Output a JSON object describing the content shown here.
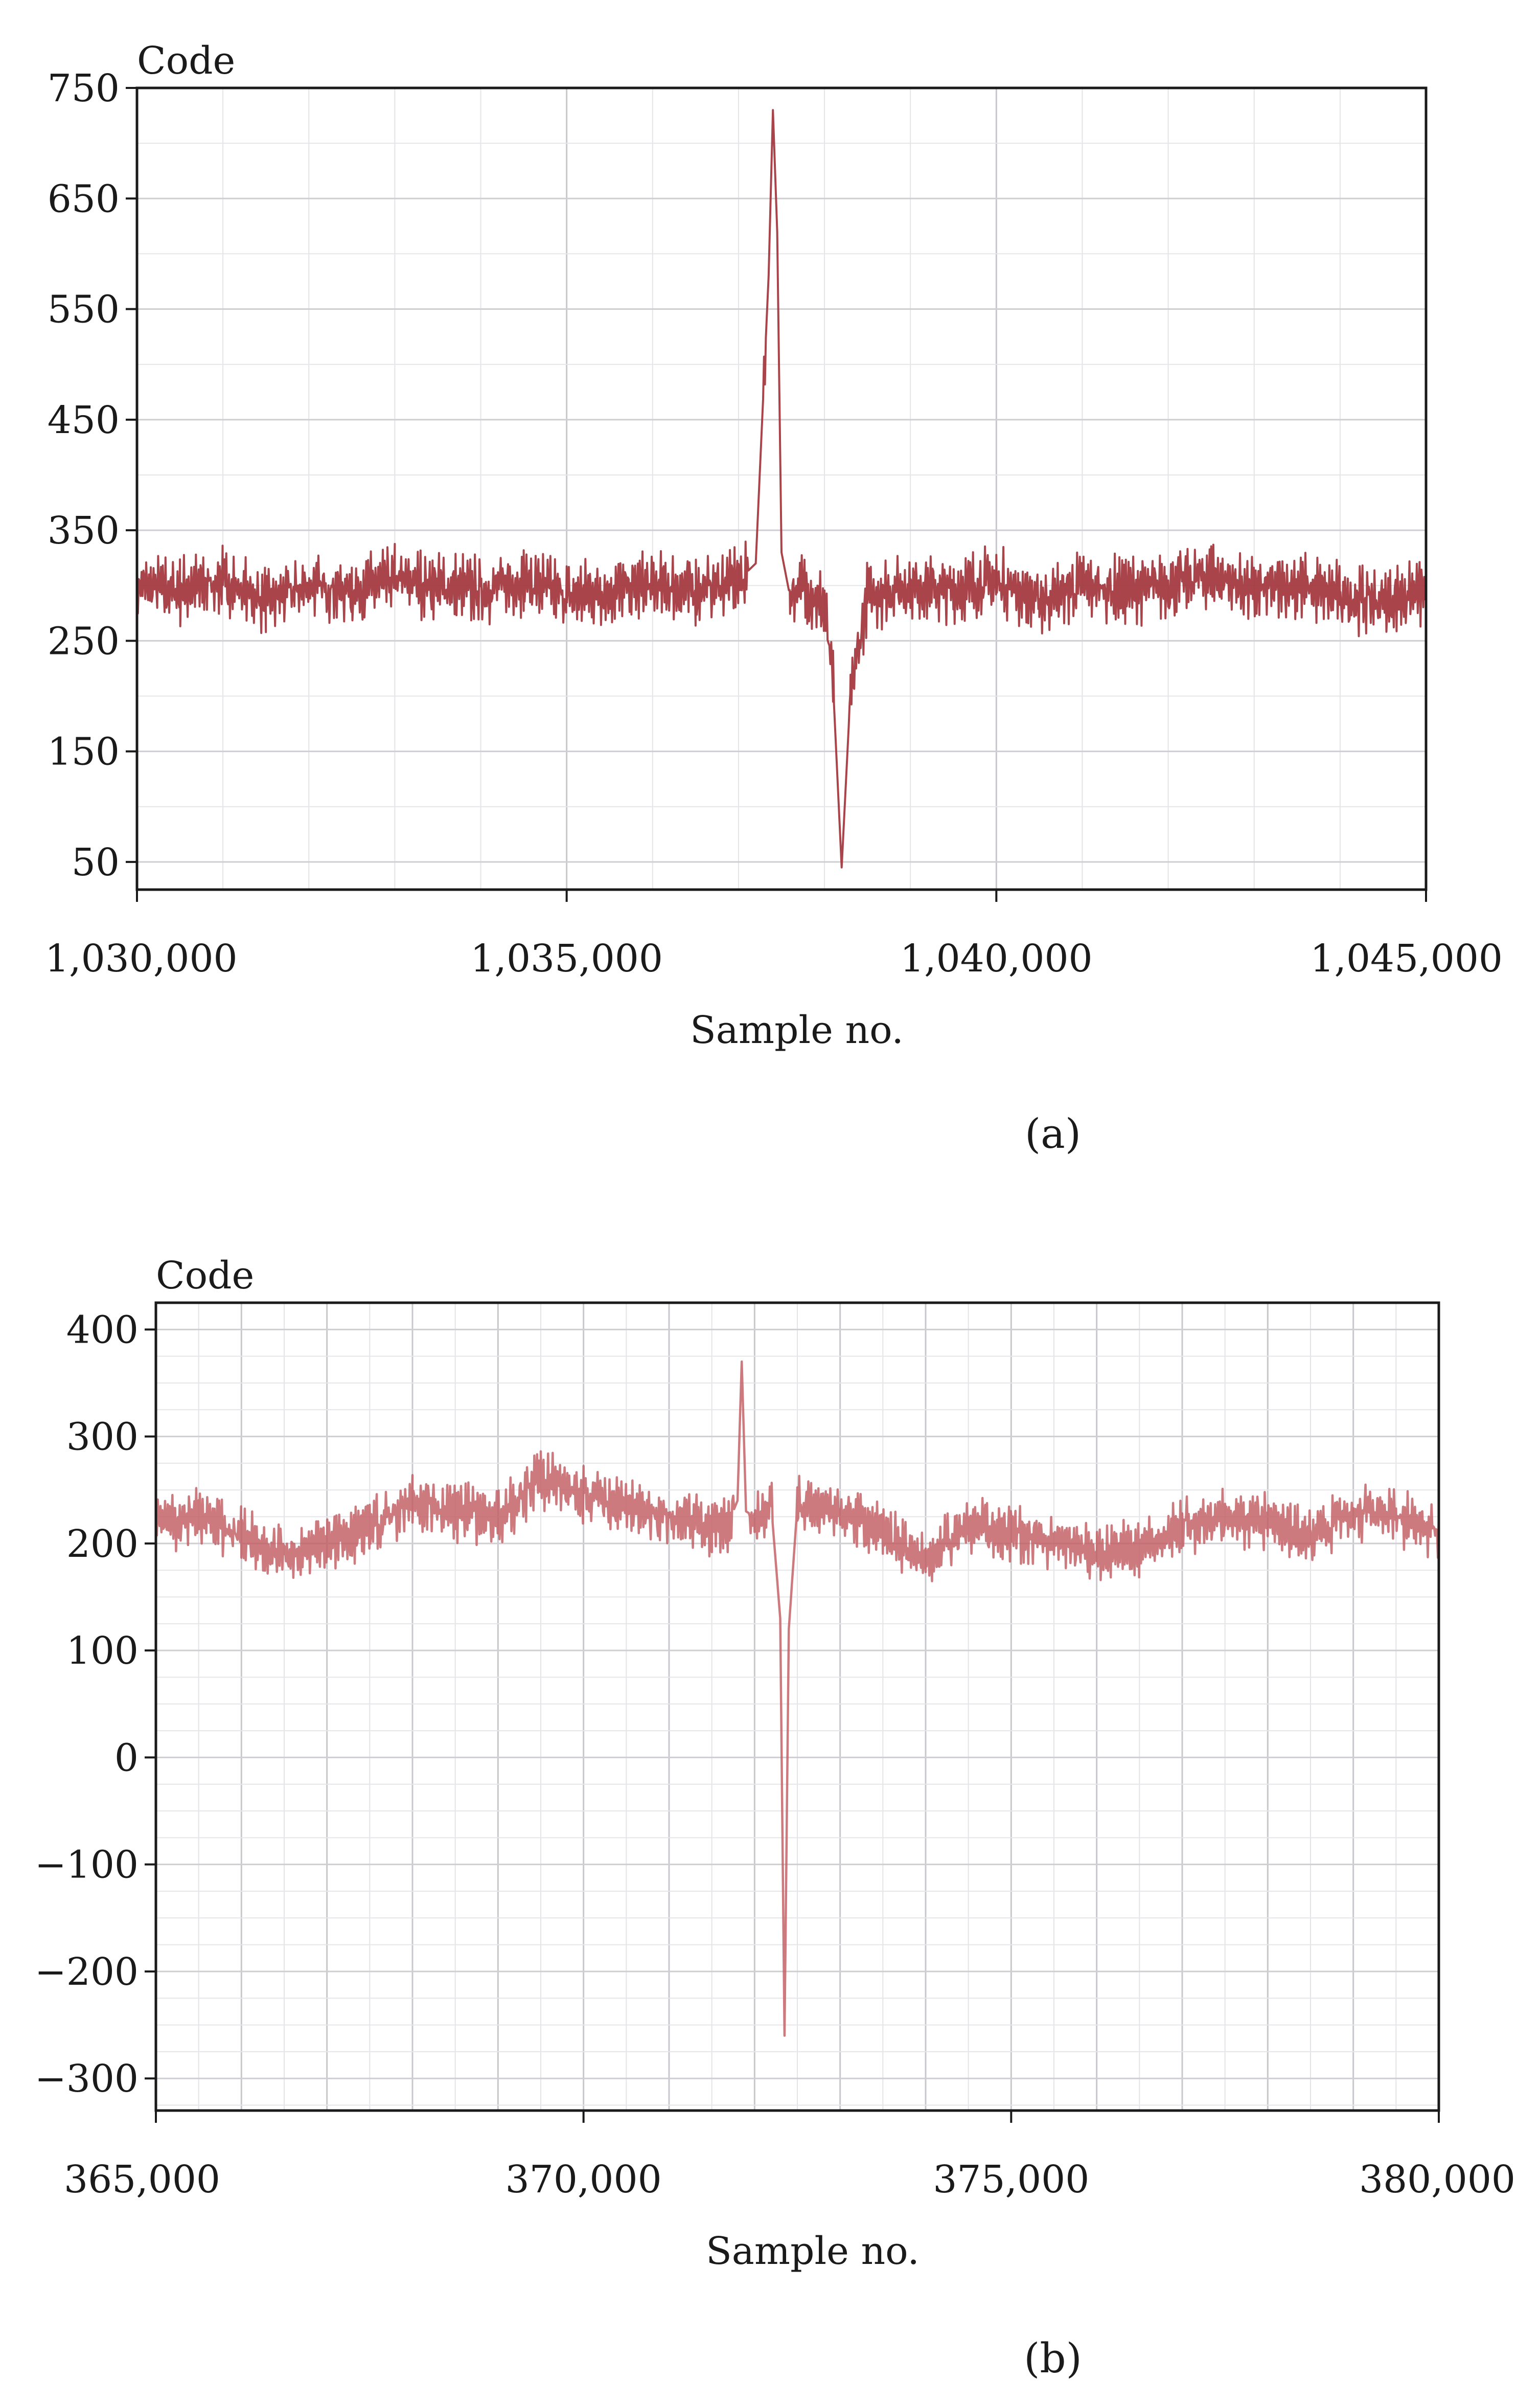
{
  "chart_data": [
    {
      "type": "line",
      "panel_label": "(a)",
      "ylabel": "Code",
      "xlabel": "Sample no.",
      "xlim": [
        1030000,
        1045000
      ],
      "ylim": [
        25,
        750
      ],
      "grid": true,
      "y_ticks": [
        750,
        650,
        550,
        450,
        350,
        250,
        150,
        50
      ],
      "y_tick_labels": [
        "750",
        "650",
        "550",
        "450",
        "350",
        "250",
        "150",
        "50"
      ],
      "x_ticks": [
        1030000,
        1035000,
        1040000,
        1045000
      ],
      "x_tick_labels": [
        "1,030,000",
        "1,035,000",
        "1,040,000",
        "1,045,000"
      ],
      "series": [
        {
          "color": "#9e3036",
          "x": [
            1030000,
            1030500,
            1031000,
            1031500,
            1032000,
            1032500,
            1033000,
            1033500,
            1034000,
            1034500,
            1035000,
            1035500,
            1036000,
            1036500,
            1037000,
            1037200,
            1037350,
            1037400,
            1037450,
            1037500,
            1037600,
            1037700,
            1037800,
            1038000,
            1038100,
            1038200,
            1038300,
            1038500,
            1039000,
            1039500,
            1040000,
            1040500,
            1041000,
            1041500,
            1042000,
            1042500,
            1043000,
            1043500,
            1044000,
            1044500,
            1045000
          ],
          "y": [
            300,
            295,
            305,
            285,
            300,
            295,
            305,
            300,
            295,
            305,
            290,
            295,
            300,
            295,
            305,
            320,
            580,
            730,
            620,
            330,
            290,
            300,
            295,
            280,
            210,
            45,
            200,
            290,
            300,
            295,
            305,
            285,
            300,
            295,
            300,
            310,
            295,
            300,
            290,
            285,
            295
          ]
        }
      ]
    },
    {
      "type": "line",
      "panel_label": "(b)",
      "ylabel": "Code",
      "xlabel": "Sample no.",
      "xlim": [
        365000,
        380000
      ],
      "ylim": [
        -330,
        425
      ],
      "grid": true,
      "y_ticks": [
        400,
        300,
        200,
        100,
        0,
        -100,
        -200,
        -300
      ],
      "y_tick_labels": [
        "400",
        "300",
        "200",
        "100",
        "0",
        "−100",
        "−200",
        "−300"
      ],
      "x_ticks": [
        365000,
        370000,
        375000,
        380000
      ],
      "x_tick_labels": [
        "365,000",
        "370,000",
        "375,000",
        "380,000"
      ],
      "series": [
        {
          "color": "#c0595f",
          "x": [
            365000,
            365500,
            366000,
            366500,
            367000,
            367500,
            368000,
            368500,
            369000,
            369500,
            370000,
            370500,
            371000,
            371500,
            371700,
            371800,
            371850,
            371900,
            372000,
            372200,
            372300,
            372350,
            372400,
            372500,
            373000,
            373500,
            374000,
            374500,
            375000,
            375500,
            376000,
            376500,
            377000,
            377500,
            378000,
            378500,
            379000,
            379500,
            380000
          ],
          "y": [
            215,
            225,
            205,
            190,
            200,
            215,
            240,
            230,
            225,
            260,
            245,
            235,
            225,
            215,
            220,
            240,
            370,
            230,
            225,
            230,
            130,
            -260,
            120,
            235,
            230,
            210,
            185,
            215,
            210,
            200,
            190,
            195,
            215,
            225,
            220,
            205,
            230,
            225,
            210
          ]
        }
      ]
    }
  ]
}
